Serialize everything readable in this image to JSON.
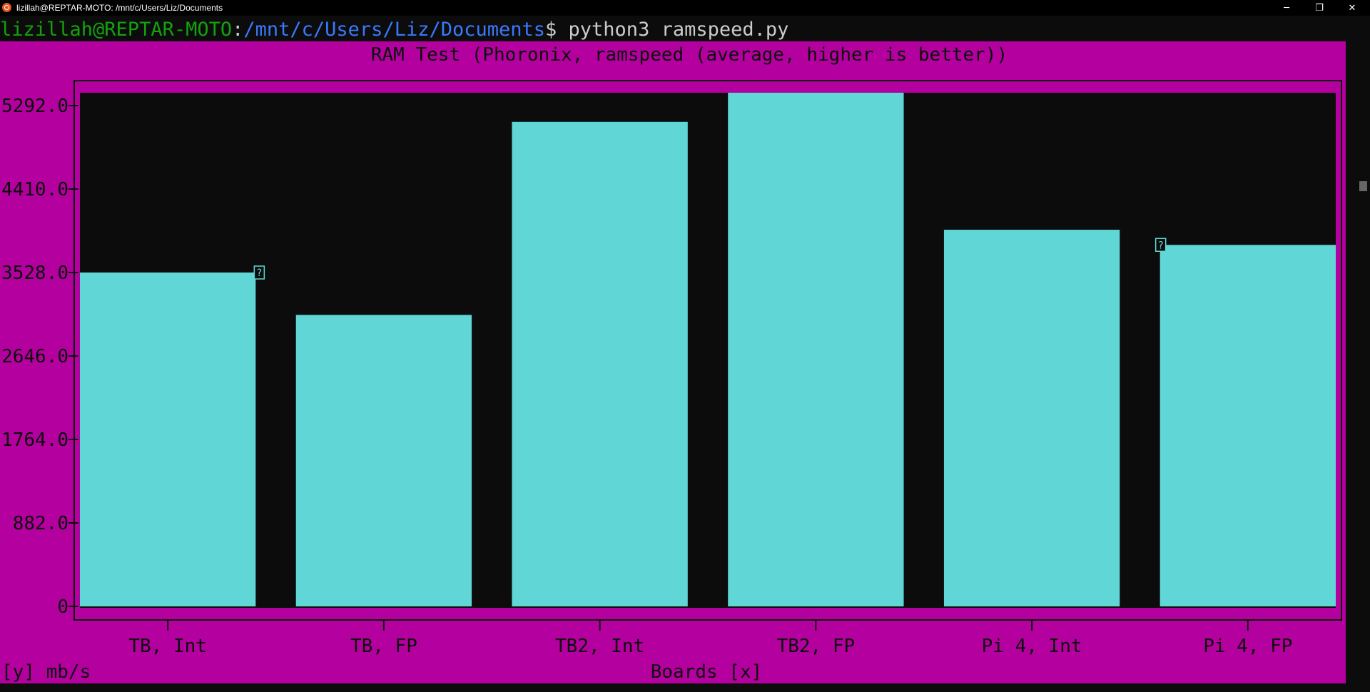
{
  "window": {
    "title": "lizillah@REPTAR-MOTO: /mnt/c/Users/Liz/Documents",
    "minimize_glyph": "─",
    "restore_glyph": "❐",
    "close_glyph": "✕"
  },
  "prompt": {
    "user_host": "lizillah@REPTAR-MOTO",
    "separator": ":",
    "path": "/mnt/c/Users/Liz/Documents",
    "dollar": "$ ",
    "command": "python3 ramspeed.py"
  },
  "colors": {
    "background": "#b4009e",
    "plot_background": "#0c0c0c",
    "bar": "#61d6d6",
    "text": "#0c0c0c"
  },
  "chart_data": {
    "type": "bar",
    "title": "RAM Test (Phoronix, ramspeed (average, higher is better))",
    "xlabel": "Boards [x]",
    "ylabel": "[y] mb/s",
    "categories": [
      "TB, Int",
      "TB, FP",
      "TB2, Int",
      "TB2, FP",
      "Pi 4, Int",
      "Pi 4, FP"
    ],
    "values": [
      3528,
      3080,
      5120,
      5475,
      3980,
      3820
    ],
    "yticks": [
      "0",
      "882.0",
      "1764.0",
      "2646.0",
      "3528.0",
      "4410.0",
      "5292.0"
    ],
    "ytick_values": [
      0,
      882,
      1764,
      2646,
      3528,
      4410,
      5292
    ],
    "ylim": [
      0,
      5292
    ],
    "grid": false,
    "marker_glyph": "?"
  }
}
